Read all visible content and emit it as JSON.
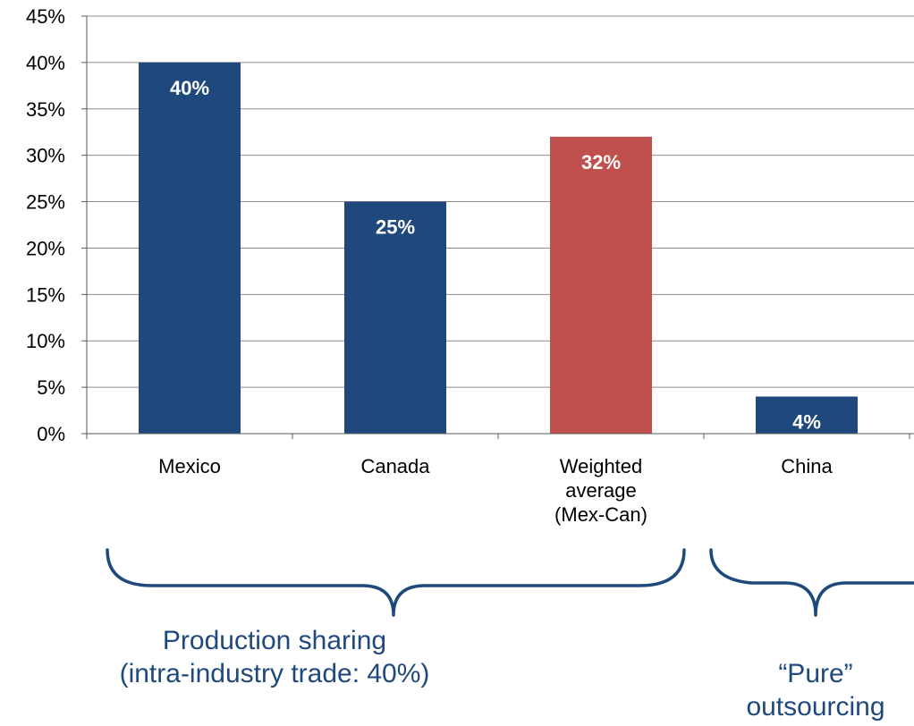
{
  "chart_data": {
    "type": "bar",
    "categories": [
      [
        "Mexico"
      ],
      [
        "Canada"
      ],
      [
        "Weighted",
        "average",
        "(Mex-Can)"
      ],
      [
        "China"
      ]
    ],
    "values": [
      40,
      25,
      32,
      4
    ],
    "data_labels": [
      "40%",
      "25%",
      "32%",
      "4%"
    ],
    "bar_colors": [
      "#1f497d",
      "#1f497d",
      "#c0504d",
      "#1f497d"
    ],
    "ylim": [
      0,
      45
    ],
    "yticks": [
      "0%",
      "5%",
      "10%",
      "15%",
      "20%",
      "25%",
      "30%",
      "35%",
      "40%",
      "45%"
    ],
    "grid": true,
    "title": "",
    "xlabel": "",
    "ylabel": ""
  },
  "annotations": {
    "group1": [
      "Production sharing",
      "(intra-industry trade: 40%)"
    ],
    "group2": [
      "“Pure”",
      "outsourcing"
    ]
  },
  "colors": {
    "primary_bar": "#1f497d",
    "highlight_bar": "#c0504d",
    "annotation": "#1f497d",
    "grid": "#8c8c8c"
  }
}
